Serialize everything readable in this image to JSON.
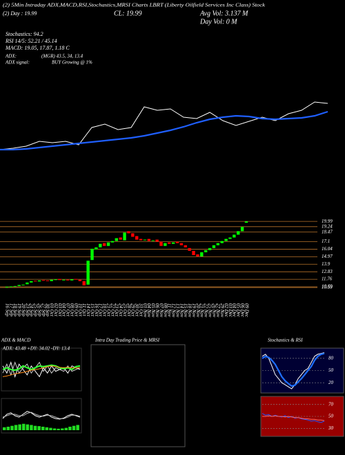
{
  "header": {
    "title": "(2) 5Min Intraday ADX,MACD,RSI,Stochastics,MRSI Charts LBRT (Liberty Oilfield Services Inc Class) Stock",
    "day": "(2) Day : 19.99",
    "close": "CL: 19.99",
    "avg_vol": "Avg Vol: 3.137 M",
    "day_vol": "Day Vol: 0  M",
    "indicators": [
      "Stochastics: 94.2",
      "RSI 14/5: 52.21 / 45.14",
      "MACD: 19.05, 17.87, 1.18 C"
    ],
    "adx_label": "ADX:",
    "adx_value": "(MGR) 43.5, 34, 13.4",
    "adx_signal_label": "ADX  signal:",
    "adx_signal": "BUY Growing @ 1%"
  },
  "chart_data": [
    {
      "type": "line",
      "ylim": [
        0,
        100
      ],
      "series": [
        {
          "color": "#ffffff",
          "values": [
            13,
            15,
            18,
            25,
            23,
            25,
            20,
            45,
            50,
            42,
            45,
            75,
            70,
            72,
            60,
            58,
            67,
            55,
            48,
            54,
            60,
            55,
            65,
            70,
            82,
            80
          ]
        },
        {
          "color": "#1f5fff",
          "values": [
            13,
            13,
            14,
            16,
            18,
            20,
            22,
            24,
            26,
            28,
            30,
            33,
            37,
            41,
            46,
            52,
            57,
            60,
            62,
            61,
            58,
            57,
            58,
            59,
            62,
            68
          ]
        }
      ]
    },
    {
      "type": "candlestick",
      "categories": [
        "16 Sep",
        "17 Sep",
        "18 Sep",
        "19 Sep",
        "20 Sep",
        "23 Sep",
        "24 Sep",
        "25 Sep",
        "26 Sep",
        "27 Sep",
        "30 Sep",
        "01 Oct",
        "02 Oct",
        "03 Oct",
        "04 Oct",
        "07 Oct",
        "08 Oct",
        "09 Oct",
        "10 Oct",
        "11 Oct",
        "14 Oct",
        "15 Oct",
        "16 Oct",
        "17 Oct",
        "18 Oct",
        "21 Oct",
        "22 Oct",
        "23 Oct",
        "24 Oct",
        "25 Oct",
        "28 Oct",
        "29 Oct",
        "30 Oct",
        "31 Oct",
        "01 Nov",
        "04 Nov",
        "05 Nov",
        "06 Nov",
        "07 Nov",
        "08 Nov",
        "11 Nov",
        "12 Nov",
        "13 Nov",
        "14 Nov",
        "15 Nov",
        "18 Nov",
        "19 Nov",
        "20 Nov",
        "21 Nov",
        "22 Nov",
        "25 Nov",
        "26 Nov",
        "27 Nov",
        "29 Nov",
        "02 Dec",
        "03 Dec",
        "04 Dec",
        "05 Dec",
        "06 Dec",
        "09 Dec"
      ],
      "open": [
        10.6,
        10.7,
        10.75,
        10.8,
        10.95,
        11.05,
        11.3,
        11.55,
        11.45,
        11.65,
        11.6,
        11.5,
        11.7,
        11.8,
        11.6,
        11.7,
        11.6,
        11.8,
        11.7,
        11.5,
        11.0,
        14.5,
        16.0,
        16.3,
        16.9,
        16.5,
        17.0,
        17.2,
        17.7,
        17.3,
        18.6,
        18.3,
        17.9,
        17.5,
        17.3,
        17.5,
        17.2,
        17.4,
        17.1,
        16.5,
        17.0,
        16.8,
        17.1,
        16.9,
        16.6,
        16.2,
        15.8,
        15.3,
        15.0,
        15.6,
        15.9,
        16.2,
        16.6,
        16.9,
        17.2,
        17.5,
        17.7,
        18.1,
        18.6,
        19.8
      ],
      "close": [
        10.7,
        10.75,
        10.8,
        10.95,
        11.0,
        11.3,
        11.5,
        11.45,
        11.6,
        11.55,
        11.5,
        11.7,
        11.75,
        11.65,
        11.7,
        11.6,
        11.75,
        11.7,
        11.5,
        10.9,
        14.4,
        16.1,
        16.3,
        16.8,
        16.5,
        17.0,
        17.2,
        17.6,
        17.4,
        18.4,
        18.3,
        17.8,
        17.4,
        17.3,
        17.4,
        17.2,
        17.3,
        17.1,
        16.5,
        16.9,
        16.8,
        17.0,
        16.9,
        16.6,
        16.3,
        15.8,
        15.2,
        15.0,
        15.6,
        15.9,
        16.2,
        16.6,
        16.9,
        17.2,
        17.5,
        17.7,
        18.1,
        18.6,
        19.2,
        19.99
      ],
      "up_color": "#00ff00",
      "down_color": "#ff0000",
      "ylim": [
        10.3,
        20.2
      ],
      "yticks": [
        19.99,
        19.24,
        18.47,
        17.1,
        16.04,
        14.97,
        13.9,
        12.83,
        11.76,
        10.69,
        10.59
      ],
      "grid": true,
      "grid_color": "#b8732b"
    },
    {
      "type": "line",
      "title": "ADX  & MACD",
      "annotation": "ADX: 43.48  +DY: 34.02  -DY: 13.4",
      "ylim": [
        0,
        100
      ],
      "series": [
        {
          "color": "#ffffff",
          "values": [
            60,
            40,
            70,
            30,
            65,
            50,
            35,
            60,
            45,
            30,
            55,
            40,
            60,
            45,
            50,
            55,
            40,
            60,
            55,
            50
          ]
        },
        {
          "color": "#cccccc",
          "values": [
            40,
            65,
            35,
            70,
            40,
            55,
            65,
            40,
            55,
            70,
            45,
            60,
            40,
            55,
            50,
            45,
            60,
            45,
            50,
            55
          ]
        },
        {
          "color": "#33ff33",
          "values": [
            50,
            55,
            50,
            48,
            52,
            60,
            55,
            50,
            55,
            60,
            58,
            60,
            62,
            60,
            55,
            52,
            55,
            50,
            58,
            60
          ]
        },
        {
          "color": "#ff8c1a",
          "values": [
            30,
            32,
            35,
            38,
            40,
            42,
            45,
            48,
            50,
            52,
            55,
            58,
            60,
            58,
            56,
            55,
            56,
            55,
            54,
            55
          ]
        }
      ]
    },
    {
      "type": "line",
      "ylim": [
        0,
        100
      ],
      "histogram": {
        "color": "#22dd22",
        "values": [
          10,
          12,
          15,
          18,
          20,
          22,
          20,
          18,
          15,
          14,
          12,
          10,
          8,
          6,
          5,
          6,
          8,
          12,
          15,
          18
        ]
      },
      "series": [
        {
          "color": "#ffffff",
          "values": [
            40,
            55,
            60,
            50,
            45,
            55,
            65,
            60,
            50,
            45,
            50,
            55,
            45,
            40,
            38,
            42,
            50,
            55,
            50,
            45
          ]
        },
        {
          "color": "#bbbbbb",
          "values": [
            45,
            50,
            55,
            55,
            50,
            50,
            58,
            62,
            55,
            50,
            48,
            52,
            50,
            45,
            40,
            40,
            45,
            52,
            52,
            48
          ]
        }
      ]
    },
    {
      "type": "line",
      "title": "Intra Day Trading Price  & MRSI",
      "series": []
    },
    {
      "type": "line",
      "title": "Stochastics  & RSI",
      "ylim": [
        0,
        100
      ],
      "yticks": [
        20,
        50,
        80
      ],
      "series": [
        {
          "color": "#ffffff",
          "values": [
            85,
            90,
            80,
            60,
            40,
            30,
            20,
            15,
            10,
            5,
            15,
            30,
            40,
            50,
            55,
            70,
            85,
            90,
            92,
            94
          ]
        },
        {
          "color": "#1f6fff",
          "values": [
            80,
            85,
            82,
            75,
            65,
            50,
            35,
            25,
            18,
            12,
            14,
            22,
            30,
            40,
            50,
            60,
            75,
            85,
            90,
            92
          ]
        }
      ]
    },
    {
      "type": "line",
      "ylim": [
        20,
        80
      ],
      "yticks": [
        30,
        50,
        70
      ],
      "series": [
        {
          "color": "#2255ff",
          "values": [
            55,
            52,
            53,
            50,
            52,
            50,
            49,
            51,
            48,
            50,
            47,
            48,
            46,
            45,
            44,
            42,
            43,
            41,
            40,
            42
          ]
        },
        {
          "color": "#ff6666",
          "values": [
            50,
            50,
            51,
            50,
            51,
            50,
            50,
            49,
            50,
            49,
            48,
            48,
            47,
            46,
            46,
            45,
            45,
            44,
            44,
            43
          ]
        }
      ]
    }
  ]
}
